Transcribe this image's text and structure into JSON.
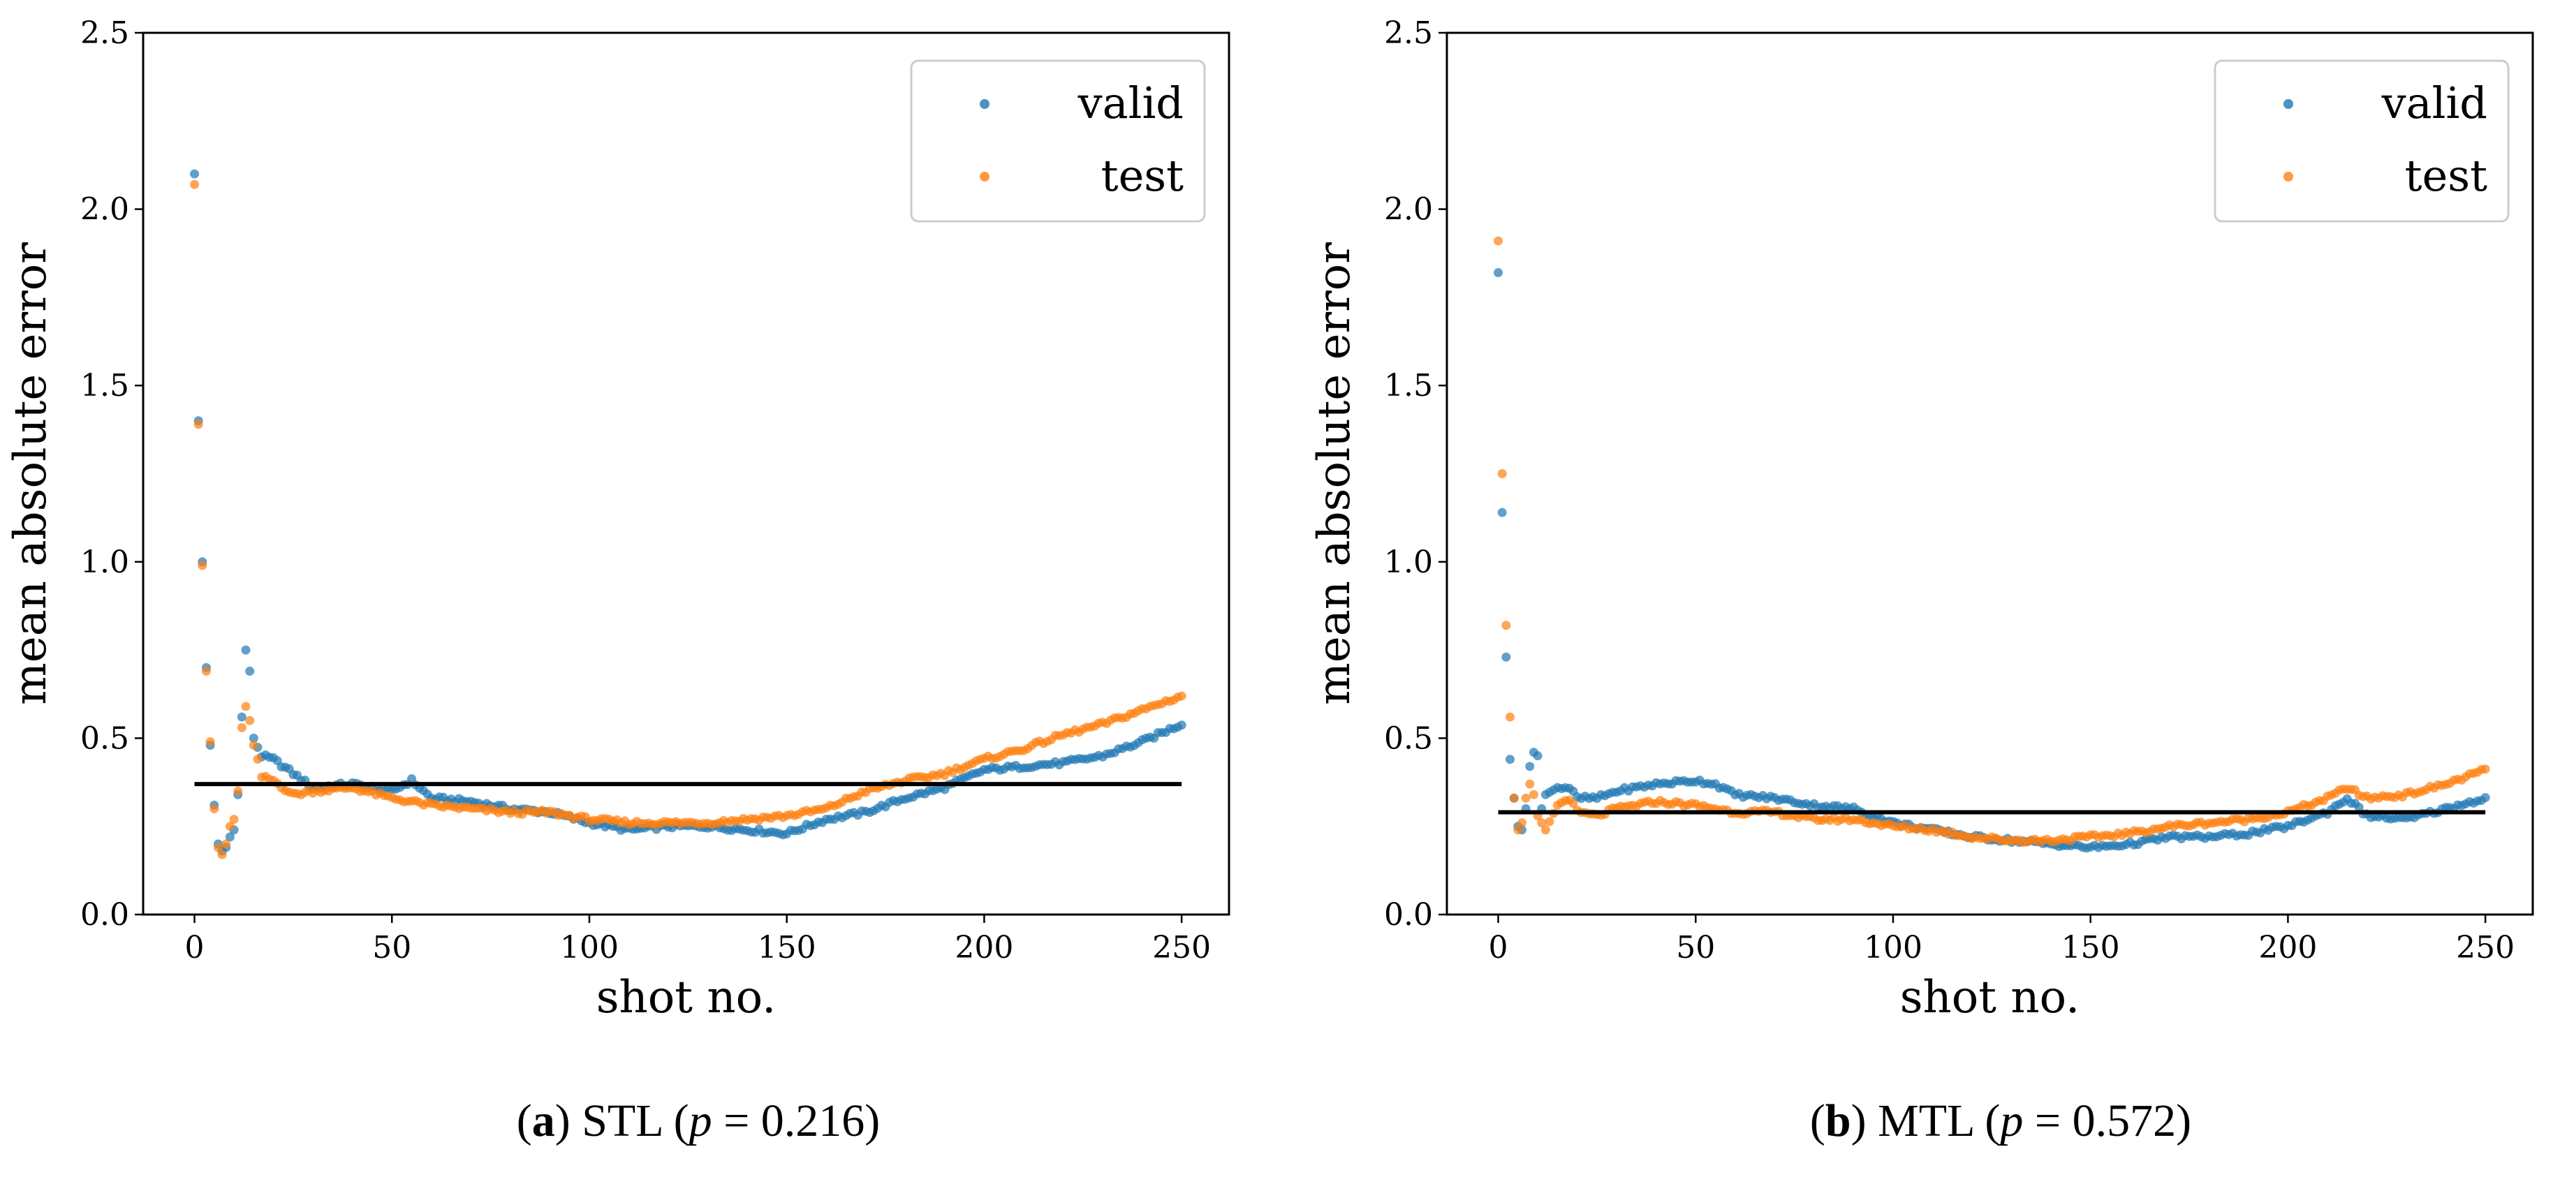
{
  "chart_data": [
    {
      "type": "scatter",
      "xlabel": "shot no.",
      "ylabel": "mean absolute error",
      "xlim": [
        -13,
        262
      ],
      "ylim": [
        0,
        2.5
      ],
      "xticks": [
        "0",
        "50",
        "100",
        "150",
        "200",
        "250"
      ],
      "yticks": [
        "0.0",
        "0.5",
        "1.0",
        "1.5",
        "2.0",
        "2.5"
      ],
      "legend": {
        "position": "top-right",
        "entries": [
          "valid",
          "test"
        ]
      },
      "colors": {
        "valid": "#1f77b4",
        "test": "#ff7f0e",
        "reference": "#000000"
      },
      "reference_line": {
        "y": 0.37,
        "x_start": 0,
        "x_end": 250
      },
      "valid_anchors": [
        [
          0,
          2.1
        ],
        [
          1,
          1.4
        ],
        [
          2,
          1.0
        ],
        [
          3,
          0.7
        ],
        [
          4,
          0.48
        ],
        [
          5,
          0.31
        ],
        [
          6,
          0.2
        ],
        [
          7,
          0.18
        ],
        [
          8,
          0.19
        ],
        [
          9,
          0.22
        ],
        [
          10,
          0.24
        ],
        [
          11,
          0.34
        ],
        [
          12,
          0.56
        ],
        [
          13,
          0.75
        ],
        [
          14,
          0.69
        ],
        [
          15,
          0.5
        ],
        [
          17,
          0.45
        ],
        [
          20,
          0.44
        ],
        [
          25,
          0.4
        ],
        [
          30,
          0.36
        ],
        [
          40,
          0.37
        ],
        [
          50,
          0.35
        ],
        [
          55,
          0.38
        ],
        [
          60,
          0.33
        ],
        [
          70,
          0.32
        ],
        [
          80,
          0.3
        ],
        [
          90,
          0.29
        ],
        [
          100,
          0.26
        ],
        [
          110,
          0.24
        ],
        [
          120,
          0.25
        ],
        [
          130,
          0.25
        ],
        [
          140,
          0.24
        ],
        [
          150,
          0.23
        ],
        [
          160,
          0.27
        ],
        [
          170,
          0.29
        ],
        [
          180,
          0.33
        ],
        [
          190,
          0.36
        ],
        [
          200,
          0.41
        ],
        [
          210,
          0.42
        ],
        [
          220,
          0.43
        ],
        [
          230,
          0.45
        ],
        [
          240,
          0.49
        ],
        [
          250,
          0.54
        ]
      ],
      "test_anchors": [
        [
          0,
          2.07
        ],
        [
          1,
          1.39
        ],
        [
          2,
          0.99
        ],
        [
          3,
          0.69
        ],
        [
          4,
          0.49
        ],
        [
          5,
          0.3
        ],
        [
          6,
          0.19
        ],
        [
          7,
          0.17
        ],
        [
          8,
          0.2
        ],
        [
          9,
          0.25
        ],
        [
          10,
          0.27
        ],
        [
          11,
          0.35
        ],
        [
          12,
          0.53
        ],
        [
          13,
          0.59
        ],
        [
          14,
          0.55
        ],
        [
          15,
          0.48
        ],
        [
          17,
          0.39
        ],
        [
          20,
          0.38
        ],
        [
          25,
          0.34
        ],
        [
          30,
          0.35
        ],
        [
          40,
          0.36
        ],
        [
          50,
          0.33
        ],
        [
          60,
          0.31
        ],
        [
          70,
          0.3
        ],
        [
          80,
          0.29
        ],
        [
          90,
          0.29
        ],
        [
          100,
          0.27
        ],
        [
          110,
          0.26
        ],
        [
          120,
          0.26
        ],
        [
          130,
          0.26
        ],
        [
          140,
          0.27
        ],
        [
          150,
          0.28
        ],
        [
          160,
          0.3
        ],
        [
          170,
          0.35
        ],
        [
          180,
          0.38
        ],
        [
          190,
          0.4
        ],
        [
          200,
          0.44
        ],
        [
          210,
          0.47
        ],
        [
          220,
          0.51
        ],
        [
          230,
          0.54
        ],
        [
          240,
          0.58
        ],
        [
          250,
          0.62
        ]
      ]
    },
    {
      "type": "scatter",
      "xlabel": "shot no.",
      "ylabel": "mean absolute error",
      "xlim": [
        -13,
        262
      ],
      "ylim": [
        0,
        2.5
      ],
      "xticks": [
        "0",
        "50",
        "100",
        "150",
        "200",
        "250"
      ],
      "yticks": [
        "0.0",
        "0.5",
        "1.0",
        "1.5",
        "2.0",
        "2.5"
      ],
      "legend": {
        "position": "top-right",
        "entries": [
          "valid",
          "test"
        ]
      },
      "colors": {
        "valid": "#1f77b4",
        "test": "#ff7f0e",
        "reference": "#000000"
      },
      "reference_line": {
        "y": 0.29,
        "x_start": 0,
        "x_end": 250
      },
      "valid_anchors": [
        [
          0,
          1.82
        ],
        [
          1,
          1.14
        ],
        [
          2,
          0.73
        ],
        [
          3,
          0.44
        ],
        [
          4,
          0.33
        ],
        [
          5,
          0.25
        ],
        [
          6,
          0.24
        ],
        [
          7,
          0.3
        ],
        [
          8,
          0.42
        ],
        [
          9,
          0.46
        ],
        [
          10,
          0.45
        ],
        [
          11,
          0.3
        ],
        [
          12,
          0.34
        ],
        [
          15,
          0.36
        ],
        [
          18,
          0.36
        ],
        [
          20,
          0.33
        ],
        [
          25,
          0.33
        ],
        [
          30,
          0.35
        ],
        [
          40,
          0.37
        ],
        [
          50,
          0.38
        ],
        [
          55,
          0.37
        ],
        [
          60,
          0.34
        ],
        [
          70,
          0.33
        ],
        [
          80,
          0.31
        ],
        [
          90,
          0.3
        ],
        [
          100,
          0.26
        ],
        [
          110,
          0.24
        ],
        [
          120,
          0.22
        ],
        [
          130,
          0.21
        ],
        [
          140,
          0.2
        ],
        [
          150,
          0.19
        ],
        [
          160,
          0.2
        ],
        [
          170,
          0.22
        ],
        [
          180,
          0.22
        ],
        [
          190,
          0.23
        ],
        [
          200,
          0.25
        ],
        [
          210,
          0.29
        ],
        [
          215,
          0.33
        ],
        [
          220,
          0.28
        ],
        [
          230,
          0.27
        ],
        [
          240,
          0.3
        ],
        [
          250,
          0.33
        ]
      ],
      "test_anchors": [
        [
          0,
          1.91
        ],
        [
          1,
          1.25
        ],
        [
          2,
          0.82
        ],
        [
          3,
          0.56
        ],
        [
          4,
          0.33
        ],
        [
          5,
          0.24
        ],
        [
          6,
          0.26
        ],
        [
          7,
          0.33
        ],
        [
          8,
          0.37
        ],
        [
          9,
          0.34
        ],
        [
          10,
          0.28
        ],
        [
          12,
          0.24
        ],
        [
          15,
          0.31
        ],
        [
          18,
          0.33
        ],
        [
          20,
          0.29
        ],
        [
          25,
          0.28
        ],
        [
          30,
          0.3
        ],
        [
          40,
          0.32
        ],
        [
          50,
          0.31
        ],
        [
          60,
          0.29
        ],
        [
          70,
          0.29
        ],
        [
          80,
          0.27
        ],
        [
          90,
          0.27
        ],
        [
          100,
          0.25
        ],
        [
          110,
          0.24
        ],
        [
          120,
          0.22
        ],
        [
          130,
          0.21
        ],
        [
          140,
          0.21
        ],
        [
          150,
          0.22
        ],
        [
          160,
          0.23
        ],
        [
          170,
          0.25
        ],
        [
          180,
          0.26
        ],
        [
          190,
          0.27
        ],
        [
          200,
          0.29
        ],
        [
          210,
          0.33
        ],
        [
          215,
          0.36
        ],
        [
          220,
          0.33
        ],
        [
          230,
          0.34
        ],
        [
          240,
          0.37
        ],
        [
          250,
          0.41
        ]
      ]
    }
  ],
  "captions": [
    {
      "letter": "a",
      "text": "STL (",
      "var": "p",
      "rest": " = 0.216)"
    },
    {
      "letter": "b",
      "text": "MTL (",
      "var": "p",
      "rest": " = 0.572)"
    }
  ]
}
